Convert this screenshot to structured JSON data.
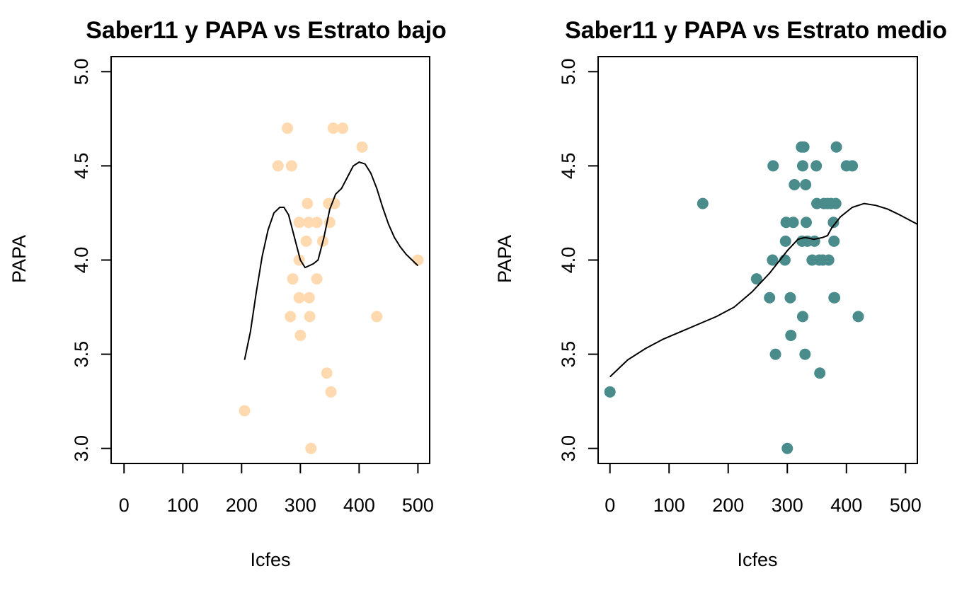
{
  "chart_data": [
    {
      "type": "scatter",
      "title": "Saber11 y PAPA vs Estrato bajo",
      "xlabel": "Icfes",
      "ylabel": "PAPA",
      "xlim": [
        -22,
        520
      ],
      "ylim": [
        2.92,
        5.08
      ],
      "xticks": [
        0,
        100,
        200,
        300,
        400,
        500
      ],
      "xtick_labels": [
        "0",
        "100",
        "200",
        "300",
        "400",
        "500"
      ],
      "yticks": [
        3.0,
        3.5,
        4.0,
        4.5,
        5.0
      ],
      "ytick_labels": [
        "3.0",
        "3.5",
        "4.0",
        "4.5",
        "5.0"
      ],
      "point_color": "#FFDAB0",
      "line_color": "#000000",
      "points": [
        [
          205,
          3.2
        ],
        [
          262,
          4.5
        ],
        [
          278,
          4.7
        ],
        [
          283,
          3.7
        ],
        [
          285,
          4.5
        ],
        [
          287,
          3.9
        ],
        [
          298,
          4.0
        ],
        [
          298,
          4.2
        ],
        [
          298,
          3.8
        ],
        [
          300,
          3.6
        ],
        [
          310,
          4.1
        ],
        [
          312,
          4.3
        ],
        [
          314,
          4.2
        ],
        [
          315,
          3.8
        ],
        [
          316,
          3.7
        ],
        [
          318,
          3.0
        ],
        [
          328,
          4.2
        ],
        [
          328,
          3.9
        ],
        [
          338,
          4.1
        ],
        [
          345,
          3.4
        ],
        [
          348,
          4.3
        ],
        [
          350,
          4.2
        ],
        [
          352,
          3.3
        ],
        [
          356,
          4.7
        ],
        [
          358,
          4.3
        ],
        [
          372,
          4.7
        ],
        [
          405,
          4.6
        ],
        [
          430,
          3.7
        ],
        [
          500,
          4.0
        ]
      ],
      "smooth_line": [
        [
          205,
          3.47
        ],
        [
          215,
          3.62
        ],
        [
          225,
          3.83
        ],
        [
          235,
          4.02
        ],
        [
          245,
          4.16
        ],
        [
          255,
          4.25
        ],
        [
          265,
          4.28
        ],
        [
          272,
          4.28
        ],
        [
          280,
          4.24
        ],
        [
          290,
          4.12
        ],
        [
          300,
          4.0
        ],
        [
          308,
          3.96
        ],
        [
          315,
          3.97
        ],
        [
          322,
          3.98
        ],
        [
          330,
          4.0
        ],
        [
          340,
          4.12
        ],
        [
          350,
          4.27
        ],
        [
          360,
          4.35
        ],
        [
          370,
          4.38
        ],
        [
          380,
          4.44
        ],
        [
          390,
          4.5
        ],
        [
          400,
          4.52
        ],
        [
          410,
          4.51
        ],
        [
          420,
          4.46
        ],
        [
          430,
          4.38
        ],
        [
          440,
          4.28
        ],
        [
          450,
          4.19
        ],
        [
          460,
          4.12
        ],
        [
          470,
          4.07
        ],
        [
          480,
          4.03
        ],
        [
          490,
          4.0
        ],
        [
          500,
          3.97
        ]
      ]
    },
    {
      "type": "scatter",
      "title": "Saber11 y PAPA vs Estrato medio",
      "xlabel": "Icfes",
      "ylabel": "PAPA",
      "xlim": [
        -20,
        520
      ],
      "ylim": [
        2.92,
        5.08
      ],
      "xticks": [
        0,
        100,
        200,
        300,
        400,
        500
      ],
      "xtick_labels": [
        "0",
        "100",
        "200",
        "300",
        "400",
        "500"
      ],
      "yticks": [
        3.0,
        3.5,
        4.0,
        4.5,
        5.0
      ],
      "ytick_labels": [
        "3.0",
        "3.5",
        "4.0",
        "4.5",
        "5.0"
      ],
      "point_color": "#4A8B8C",
      "line_color": "#000000",
      "points": [
        [
          0,
          3.3
        ],
        [
          157,
          4.3
        ],
        [
          248,
          3.9
        ],
        [
          270,
          3.8
        ],
        [
          275,
          4.0
        ],
        [
          276,
          4.5
        ],
        [
          280,
          3.5
        ],
        [
          296,
          4.0
        ],
        [
          297,
          4.1
        ],
        [
          298,
          4.2
        ],
        [
          300,
          3.0
        ],
        [
          305,
          3.8
        ],
        [
          306,
          3.6
        ],
        [
          310,
          4.2
        ],
        [
          312,
          4.4
        ],
        [
          324,
          4.6
        ],
        [
          325,
          4.1
        ],
        [
          326,
          4.5
        ],
        [
          326,
          3.7
        ],
        [
          328,
          4.6
        ],
        [
          330,
          3.5
        ],
        [
          331,
          4.4
        ],
        [
          332,
          4.2
        ],
        [
          334,
          4.1
        ],
        [
          342,
          4.0
        ],
        [
          346,
          4.1
        ],
        [
          349,
          4.5
        ],
        [
          350,
          4.3
        ],
        [
          354,
          4.0
        ],
        [
          355,
          3.4
        ],
        [
          360,
          4.0
        ],
        [
          362,
          4.3
        ],
        [
          368,
          4.3
        ],
        [
          370,
          4.0
        ],
        [
          374,
          4.3
        ],
        [
          378,
          4.2
        ],
        [
          379,
          4.1
        ],
        [
          379,
          3.8
        ],
        [
          380,
          3.8
        ],
        [
          382,
          4.3
        ],
        [
          383,
          4.6
        ],
        [
          400,
          4.5
        ],
        [
          410,
          4.5
        ],
        [
          420,
          3.7
        ]
      ],
      "smooth_line": [
        [
          0,
          3.38
        ],
        [
          30,
          3.47
        ],
        [
          60,
          3.53
        ],
        [
          90,
          3.58
        ],
        [
          120,
          3.62
        ],
        [
          150,
          3.66
        ],
        [
          180,
          3.7
        ],
        [
          210,
          3.75
        ],
        [
          240,
          3.83
        ],
        [
          270,
          3.93
        ],
        [
          300,
          4.05
        ],
        [
          318,
          4.11
        ],
        [
          330,
          4.12
        ],
        [
          345,
          4.11
        ],
        [
          360,
          4.12
        ],
        [
          368,
          4.13
        ],
        [
          375,
          4.17
        ],
        [
          390,
          4.23
        ],
        [
          410,
          4.28
        ],
        [
          430,
          4.3
        ],
        [
          450,
          4.29
        ],
        [
          470,
          4.27
        ],
        [
          490,
          4.24
        ],
        [
          520,
          4.19
        ]
      ]
    }
  ]
}
